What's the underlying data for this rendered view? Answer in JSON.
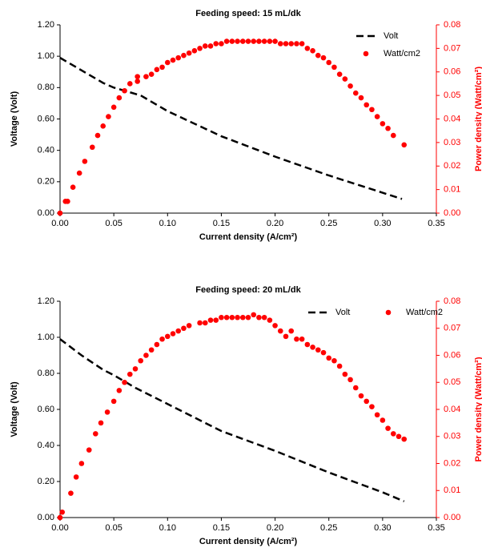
{
  "chart_data": [
    {
      "type": "combo",
      "title": "Feeding speed: 15 mL/dk",
      "x_label": "Current density (A/cm²)",
      "y_label": "Voltage (Volt)",
      "y2_label": "Power density (Watt/cm²)",
      "xlim": [
        0,
        0.35
      ],
      "ylim": [
        0,
        1.2
      ],
      "y2lim": [
        0,
        0.08
      ],
      "xticks": [
        {
          "value": 0,
          "label": "0.00"
        },
        {
          "value": 0.05,
          "label": "0.05"
        },
        {
          "value": 0.1,
          "label": "0.10"
        },
        {
          "value": 0.15,
          "label": "0.15"
        },
        {
          "value": 0.2,
          "label": "0.20"
        },
        {
          "value": 0.25,
          "label": "0.25"
        },
        {
          "value": 0.3,
          "label": "0.30"
        },
        {
          "value": 0.35,
          "label": "0.35"
        }
      ],
      "yticks": [
        {
          "value": 0,
          "label": "0.00"
        },
        {
          "value": 0.2,
          "label": "0.20"
        },
        {
          "value": 0.4,
          "label": "0.40"
        },
        {
          "value": 0.6,
          "label": "0.60"
        },
        {
          "value": 0.8,
          "label": "0.80"
        },
        {
          "value": 1,
          "label": "1.00"
        },
        {
          "value": 1.2,
          "label": "1.20"
        }
      ],
      "y2ticks": [
        {
          "value": 0,
          "label": "0.00"
        },
        {
          "value": 0.01,
          "label": "0.01"
        },
        {
          "value": 0.02,
          "label": "0.02"
        },
        {
          "value": 0.03,
          "label": "0.03"
        },
        {
          "value": 0.04,
          "label": "0.04"
        },
        {
          "value": 0.05,
          "label": "0.05"
        },
        {
          "value": 0.06,
          "label": "0.06"
        },
        {
          "value": 0.07,
          "label": "0.07"
        },
        {
          "value": 0.08,
          "label": "0.08"
        }
      ],
      "legend": "upper right",
      "legend_columns": 1,
      "series": [
        {
          "name": "Volt",
          "type": "line",
          "dashed": true,
          "color": "#000000",
          "axis": "y",
          "x": [
            0,
            0.02,
            0.04,
            0.05,
            0.075,
            0.1,
            0.15,
            0.2,
            0.25,
            0.3,
            0.318
          ],
          "values": [
            0.99,
            0.91,
            0.83,
            0.8,
            0.75,
            0.65,
            0.49,
            0.36,
            0.24,
            0.13,
            0.09
          ]
        },
        {
          "name": "Watt/cm2",
          "type": "scatter",
          "color": "#ff0000",
          "axis": "y2",
          "x": [
            0,
            0.005,
            0.007,
            0.012,
            0.018,
            0.023,
            0.03,
            0.035,
            0.04,
            0.045,
            0.05,
            0.055,
            0.06,
            0.065,
            0.072,
            0.072,
            0.08,
            0.085,
            0.09,
            0.095,
            0.1,
            0.105,
            0.11,
            0.115,
            0.12,
            0.125,
            0.13,
            0.135,
            0.14,
            0.145,
            0.15,
            0.155,
            0.16,
            0.165,
            0.17,
            0.175,
            0.18,
            0.185,
            0.19,
            0.195,
            0.2,
            0.205,
            0.21,
            0.215,
            0.22,
            0.225,
            0.23,
            0.235,
            0.24,
            0.245,
            0.25,
            0.255,
            0.26,
            0.265,
            0.27,
            0.275,
            0.28,
            0.285,
            0.29,
            0.295,
            0.3,
            0.305,
            0.31,
            0.32
          ],
          "values": [
            0,
            0.005,
            0.005,
            0.011,
            0.017,
            0.022,
            0.028,
            0.033,
            0.037,
            0.041,
            0.045,
            0.049,
            0.052,
            0.055,
            0.056,
            0.058,
            0.058,
            0.059,
            0.061,
            0.062,
            0.064,
            0.065,
            0.066,
            0.067,
            0.068,
            0.069,
            0.07,
            0.071,
            0.071,
            0.072,
            0.072,
            0.073,
            0.073,
            0.073,
            0.073,
            0.073,
            0.073,
            0.073,
            0.073,
            0.073,
            0.073,
            0.072,
            0.072,
            0.072,
            0.072,
            0.072,
            0.07,
            0.069,
            0.067,
            0.066,
            0.064,
            0.062,
            0.059,
            0.057,
            0.054,
            0.051,
            0.049,
            0.046,
            0.044,
            0.041,
            0.038,
            0.036,
            0.033,
            0.029
          ]
        }
      ]
    },
    {
      "type": "combo",
      "title": "Feeding speed: 20 mL/dk",
      "x_label": "Current density (A/cm²)",
      "y_label": "Voltage (Volt)",
      "y2_label": "Power density (Watt/cm²)",
      "xlim": [
        0,
        0.35
      ],
      "ylim": [
        0,
        1.2
      ],
      "y2lim": [
        0,
        0.08
      ],
      "xticks": [
        {
          "value": 0,
          "label": "0.00"
        },
        {
          "value": 0.05,
          "label": "0.05"
        },
        {
          "value": 0.1,
          "label": "0.10"
        },
        {
          "value": 0.15,
          "label": "0.15"
        },
        {
          "value": 0.2,
          "label": "0.20"
        },
        {
          "value": 0.25,
          "label": "0.25"
        },
        {
          "value": 0.3,
          "label": "0.30"
        },
        {
          "value": 0.35,
          "label": "0.35"
        }
      ],
      "yticks": [
        {
          "value": 0,
          "label": "0.00"
        },
        {
          "value": 0.2,
          "label": "0.20"
        },
        {
          "value": 0.4,
          "label": "0.40"
        },
        {
          "value": 0.6,
          "label": "0.60"
        },
        {
          "value": 0.8,
          "label": "0.80"
        },
        {
          "value": 1,
          "label": "1.00"
        },
        {
          "value": 1.2,
          "label": "1.20"
        }
      ],
      "y2ticks": [
        {
          "value": 0,
          "label": "0.00"
        },
        {
          "value": 0.01,
          "label": "0.01"
        },
        {
          "value": 0.02,
          "label": "0.02"
        },
        {
          "value": 0.03,
          "label": "0.03"
        },
        {
          "value": 0.04,
          "label": "0.04"
        },
        {
          "value": 0.05,
          "label": "0.05"
        },
        {
          "value": 0.06,
          "label": "0.06"
        },
        {
          "value": 0.07,
          "label": "0.07"
        },
        {
          "value": 0.08,
          "label": "0.08"
        }
      ],
      "legend": "upper right",
      "legend_columns": 2,
      "series": [
        {
          "name": "Volt",
          "type": "line",
          "dashed": true,
          "color": "#000000",
          "axis": "y",
          "x": [
            0,
            0.02,
            0.04,
            0.05,
            0.07,
            0.1,
            0.15,
            0.2,
            0.25,
            0.3,
            0.32
          ],
          "values": [
            0.99,
            0.9,
            0.82,
            0.79,
            0.72,
            0.63,
            0.48,
            0.37,
            0.25,
            0.14,
            0.09
          ]
        },
        {
          "name": "Watt/cm2",
          "type": "scatter",
          "color": "#ff0000",
          "axis": "y2",
          "x": [
            0,
            0.002,
            0.01,
            0.015,
            0.02,
            0.027,
            0.033,
            0.038,
            0.044,
            0.05,
            0.055,
            0.06,
            0.065,
            0.07,
            0.075,
            0.08,
            0.085,
            0.09,
            0.095,
            0.1,
            0.105,
            0.11,
            0.115,
            0.12,
            0.13,
            0.135,
            0.14,
            0.145,
            0.15,
            0.155,
            0.16,
            0.165,
            0.17,
            0.175,
            0.18,
            0.185,
            0.19,
            0.195,
            0.2,
            0.205,
            0.21,
            0.215,
            0.22,
            0.225,
            0.23,
            0.235,
            0.24,
            0.245,
            0.25,
            0.255,
            0.26,
            0.265,
            0.27,
            0.275,
            0.28,
            0.285,
            0.29,
            0.295,
            0.3,
            0.305,
            0.31,
            0.315,
            0.32
          ],
          "values": [
            0,
            0.002,
            0.009,
            0.015,
            0.02,
            0.025,
            0.031,
            0.035,
            0.039,
            0.043,
            0.047,
            0.05,
            0.053,
            0.055,
            0.058,
            0.06,
            0.062,
            0.064,
            0.066,
            0.067,
            0.068,
            0.069,
            0.07,
            0.071,
            0.072,
            0.072,
            0.073,
            0.073,
            0.074,
            0.074,
            0.074,
            0.074,
            0.074,
            0.074,
            0.075,
            0.074,
            0.074,
            0.073,
            0.071,
            0.069,
            0.067,
            0.069,
            0.066,
            0.066,
            0.064,
            0.063,
            0.062,
            0.061,
            0.059,
            0.058,
            0.056,
            0.053,
            0.051,
            0.048,
            0.045,
            0.043,
            0.041,
            0.038,
            0.036,
            0.033,
            0.031,
            0.03,
            0.029
          ]
        }
      ]
    }
  ]
}
